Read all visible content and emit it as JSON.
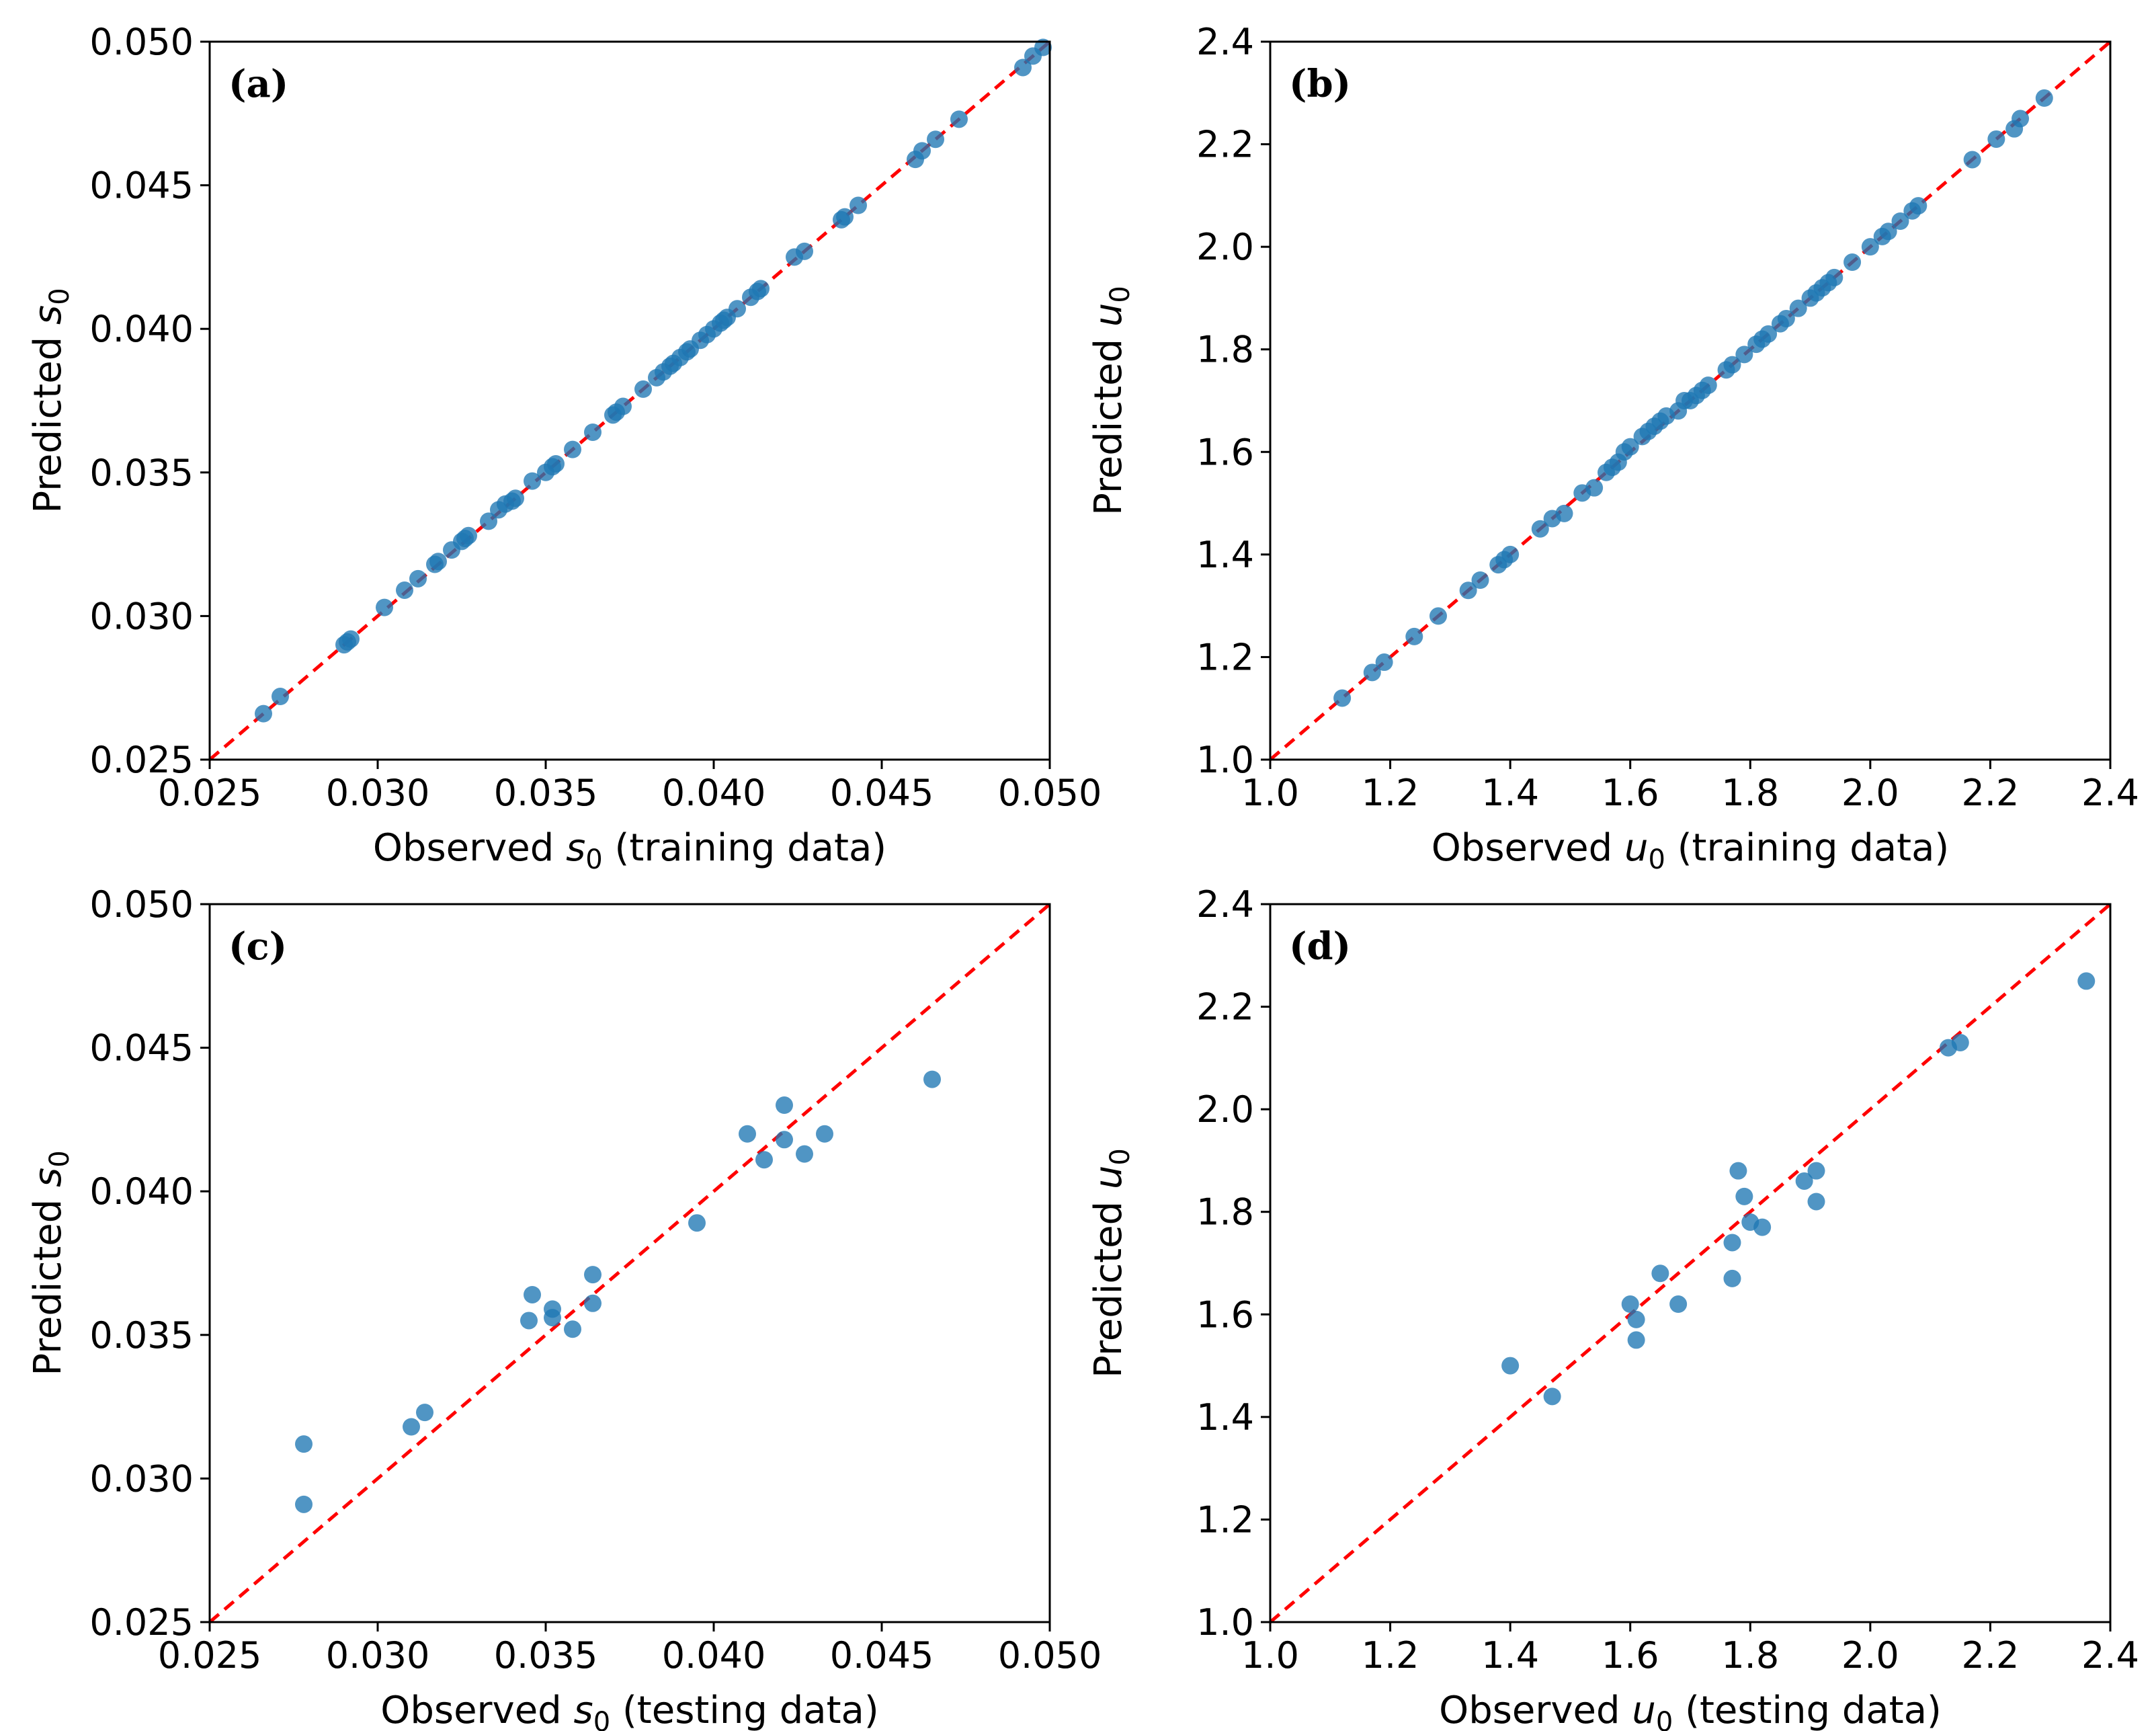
{
  "colors": {
    "points": "#1f77b4",
    "reference_line": "#ff0000"
  },
  "chart_data": [
    {
      "type": "scatter",
      "panel": "(a)",
      "xlabel": {
        "prefix": "Observed ",
        "var": "s",
        "sub": "0",
        "suffix": " (training data)"
      },
      "ylabel": {
        "prefix": "Predicted ",
        "var": "s",
        "sub": "0",
        "suffix": ""
      },
      "xlim": [
        0.025,
        0.05
      ],
      "ylim": [
        0.025,
        0.05
      ],
      "xticks": [
        "0.025",
        "0.030",
        "0.035",
        "0.040",
        "0.045",
        "0.050"
      ],
      "yticks": [
        "0.025",
        "0.030",
        "0.035",
        "0.040",
        "0.045",
        "0.050"
      ],
      "reference_line": "y = x",
      "x": [
        0.0266,
        0.0271,
        0.029,
        0.0291,
        0.0292,
        0.0302,
        0.0308,
        0.0312,
        0.0317,
        0.0318,
        0.0322,
        0.0325,
        0.0326,
        0.0327,
        0.0333,
        0.0336,
        0.0338,
        0.034,
        0.0341,
        0.0346,
        0.035,
        0.0352,
        0.0353,
        0.0358,
        0.0364,
        0.037,
        0.0371,
        0.0373,
        0.0379,
        0.0383,
        0.0385,
        0.0387,
        0.0388,
        0.039,
        0.0392,
        0.0393,
        0.0396,
        0.0398,
        0.04,
        0.0402,
        0.0403,
        0.0404,
        0.0407,
        0.0411,
        0.0413,
        0.0414,
        0.0424,
        0.0427,
        0.0438,
        0.0439,
        0.0443,
        0.046,
        0.0462,
        0.0466,
        0.0473,
        0.0492,
        0.0495,
        0.0498
      ],
      "y": [
        0.0266,
        0.0272,
        0.029,
        0.0291,
        0.0292,
        0.0303,
        0.0309,
        0.0313,
        0.0318,
        0.0319,
        0.0323,
        0.0326,
        0.0327,
        0.0328,
        0.0333,
        0.0337,
        0.0339,
        0.034,
        0.0341,
        0.0347,
        0.035,
        0.0352,
        0.0353,
        0.0358,
        0.0364,
        0.037,
        0.0371,
        0.0373,
        0.0379,
        0.0383,
        0.0385,
        0.0387,
        0.0388,
        0.039,
        0.0392,
        0.0393,
        0.0396,
        0.0398,
        0.04,
        0.0402,
        0.0403,
        0.0404,
        0.0407,
        0.0411,
        0.0413,
        0.0414,
        0.0425,
        0.0427,
        0.0438,
        0.0439,
        0.0443,
        0.0459,
        0.0462,
        0.0466,
        0.0473,
        0.0491,
        0.0495,
        0.0498
      ]
    },
    {
      "type": "scatter",
      "panel": "(b)",
      "xlabel": {
        "prefix": "Observed ",
        "var": "u",
        "sub": "0",
        "suffix": " (training data)"
      },
      "ylabel": {
        "prefix": "Predicted ",
        "var": "u",
        "sub": "0",
        "suffix": ""
      },
      "xlim": [
        1.0,
        2.4
      ],
      "ylim": [
        1.0,
        2.4
      ],
      "xticks": [
        "1.0",
        "1.2",
        "1.4",
        "1.6",
        "1.8",
        "2.0",
        "2.2",
        "2.4"
      ],
      "yticks": [
        "1.0",
        "1.2",
        "1.4",
        "1.6",
        "1.8",
        "2.0",
        "2.2",
        "2.4"
      ],
      "reference_line": "y = x",
      "x": [
        1.12,
        1.17,
        1.19,
        1.24,
        1.28,
        1.33,
        1.35,
        1.38,
        1.39,
        1.4,
        1.45,
        1.47,
        1.49,
        1.52,
        1.54,
        1.56,
        1.57,
        1.58,
        1.59,
        1.6,
        1.62,
        1.63,
        1.64,
        1.65,
        1.66,
        1.68,
        1.69,
        1.7,
        1.71,
        1.72,
        1.73,
        1.76,
        1.77,
        1.79,
        1.81,
        1.82,
        1.83,
        1.85,
        1.86,
        1.88,
        1.9,
        1.91,
        1.92,
        1.93,
        1.94,
        1.97,
        2.0,
        2.02,
        2.03,
        2.05,
        2.07,
        2.08,
        2.17,
        2.21,
        2.24,
        2.25,
        2.29
      ],
      "y": [
        1.12,
        1.17,
        1.19,
        1.24,
        1.28,
        1.33,
        1.35,
        1.38,
        1.39,
        1.4,
        1.45,
        1.47,
        1.48,
        1.52,
        1.53,
        1.56,
        1.57,
        1.58,
        1.6,
        1.61,
        1.63,
        1.64,
        1.65,
        1.66,
        1.67,
        1.68,
        1.7,
        1.7,
        1.71,
        1.72,
        1.73,
        1.76,
        1.77,
        1.79,
        1.81,
        1.82,
        1.83,
        1.85,
        1.86,
        1.88,
        1.9,
        1.91,
        1.92,
        1.93,
        1.94,
        1.97,
        2.0,
        2.02,
        2.03,
        2.05,
        2.07,
        2.08,
        2.17,
        2.21,
        2.23,
        2.25,
        2.29
      ]
    },
    {
      "type": "scatter",
      "panel": "(c)",
      "xlabel": {
        "prefix": "Observed ",
        "var": "s",
        "sub": "0",
        "suffix": " (testing data)"
      },
      "ylabel": {
        "prefix": "Predicted ",
        "var": "s",
        "sub": "0",
        "suffix": ""
      },
      "xlim": [
        0.025,
        0.05
      ],
      "ylim": [
        0.025,
        0.05
      ],
      "xticks": [
        "0.025",
        "0.030",
        "0.035",
        "0.040",
        "0.045",
        "0.050"
      ],
      "yticks": [
        "0.025",
        "0.030",
        "0.035",
        "0.040",
        "0.045",
        "0.050"
      ],
      "reference_line": "y = x",
      "x": [
        0.0278,
        0.0278,
        0.031,
        0.0314,
        0.0345,
        0.0346,
        0.0352,
        0.0352,
        0.0358,
        0.0364,
        0.0364,
        0.0395,
        0.041,
        0.0415,
        0.0421,
        0.0421,
        0.0427,
        0.0433,
        0.0465
      ],
      "y": [
        0.0312,
        0.0291,
        0.0318,
        0.0323,
        0.0355,
        0.0364,
        0.0359,
        0.0356,
        0.0352,
        0.0371,
        0.0361,
        0.0389,
        0.042,
        0.0411,
        0.0418,
        0.043,
        0.0413,
        0.042,
        0.0439
      ]
    },
    {
      "type": "scatter",
      "panel": "(d)",
      "xlabel": {
        "prefix": "Observed ",
        "var": "u",
        "sub": "0",
        "suffix": "  (testing data)"
      },
      "ylabel": {
        "prefix": "Predicted ",
        "var": "u",
        "sub": "0",
        "suffix": ""
      },
      "xlim": [
        1.0,
        2.4
      ],
      "ylim": [
        1.0,
        2.4
      ],
      "xticks": [
        "1.0",
        "1.2",
        "1.4",
        "1.6",
        "1.8",
        "2.0",
        "2.2",
        "2.4"
      ],
      "yticks": [
        "1.0",
        "1.2",
        "1.4",
        "1.6",
        "1.8",
        "2.0",
        "2.2",
        "2.4"
      ],
      "reference_line": "y = x",
      "x": [
        1.4,
        1.47,
        1.6,
        1.61,
        1.61,
        1.65,
        1.68,
        1.77,
        1.77,
        1.78,
        1.79,
        1.8,
        1.82,
        1.89,
        1.91,
        1.91,
        2.13,
        2.15,
        2.36
      ],
      "y": [
        1.5,
        1.44,
        1.62,
        1.59,
        1.55,
        1.68,
        1.62,
        1.67,
        1.74,
        1.88,
        1.83,
        1.78,
        1.77,
        1.86,
        1.88,
        1.82,
        2.12,
        2.13,
        2.25
      ]
    }
  ]
}
